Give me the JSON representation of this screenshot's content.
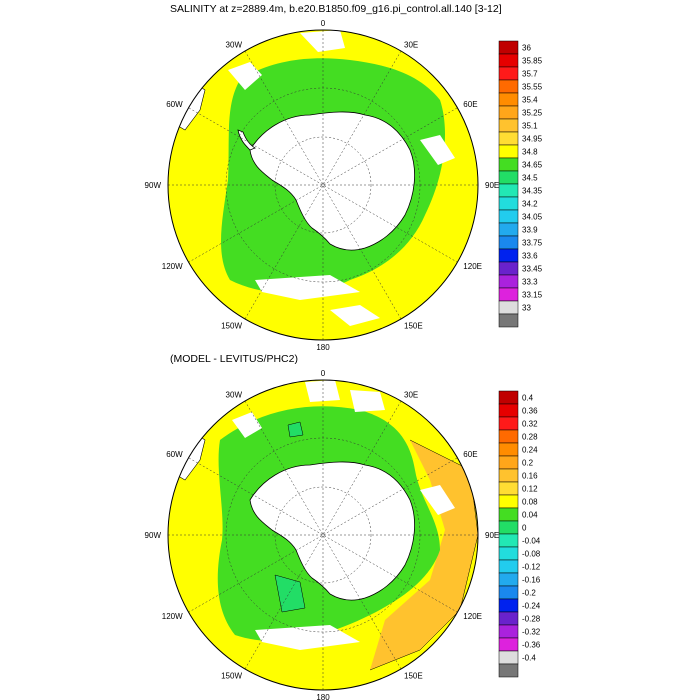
{
  "panels": [
    {
      "id": "top",
      "title": "SALINITY at z=2889.4m, b.e20.B1850.f09_g16.pi_control.all.140 [3-12]",
      "colorbar": {
        "labels": [
          "36",
          "35.85",
          "35.7",
          "35.55",
          "35.4",
          "35.25",
          "35.1",
          "34.95",
          "34.8",
          "34.65",
          "34.5",
          "34.35",
          "34.2",
          "34.05",
          "33.9",
          "33.75",
          "33.6",
          "33.45",
          "33.3",
          "33.15",
          "33"
        ],
        "colors": [
          "#c00000",
          "#e60000",
          "#ff1a1a",
          "#ff6a00",
          "#ff8c00",
          "#ffa61a",
          "#ffc22e",
          "#ffdd33",
          "#ffff00",
          "#44dd22",
          "#22dd66",
          "#22e8b4",
          "#22dddd",
          "#22ccee",
          "#22aaee",
          "#1a88ee",
          "#0022ee",
          "#6a22cc",
          "#aa22dd",
          "#dd22dd",
          "#dddddd",
          "#777777"
        ]
      },
      "map": {
        "ocean_color": "#ffff00",
        "shelf_color": "#44dd22",
        "land_color": "#ffffff"
      }
    },
    {
      "id": "bottom",
      "title": "(MODEL - LEVITUS/PHC2)",
      "colorbar": {
        "labels": [
          "0.4",
          "0.36",
          "0.32",
          "0.28",
          "0.24",
          "0.2",
          "0.16",
          "0.12",
          "0.08",
          "0.04",
          "0",
          "-0.04",
          "-0.08",
          "-0.12",
          "-0.16",
          "-0.2",
          "-0.24",
          "-0.28",
          "-0.32",
          "-0.36",
          "-0.4"
        ],
        "colors": [
          "#c00000",
          "#e60000",
          "#ff1a1a",
          "#ff6a00",
          "#ff8c00",
          "#ffa61a",
          "#ffc22e",
          "#ffdd33",
          "#ffff00",
          "#44dd22",
          "#22dd66",
          "#22e8b4",
          "#22dddd",
          "#22ccee",
          "#22aaee",
          "#1a88ee",
          "#0022ee",
          "#6a22cc",
          "#aa22dd",
          "#dd22dd",
          "#dddddd",
          "#777777"
        ]
      },
      "map": {
        "ocean_color": "#ffff00",
        "shelf_color": "#44dd22",
        "land_color": "#ffffff",
        "warm_patch_color": "#ffc22e",
        "cold_patch_color": "#22dd66"
      }
    }
  ],
  "longitude_labels": [
    "0",
    "30E",
    "60E",
    "90E",
    "120E",
    "150E",
    "180",
    "150W",
    "120W",
    "90W",
    "60W",
    "30W"
  ]
}
